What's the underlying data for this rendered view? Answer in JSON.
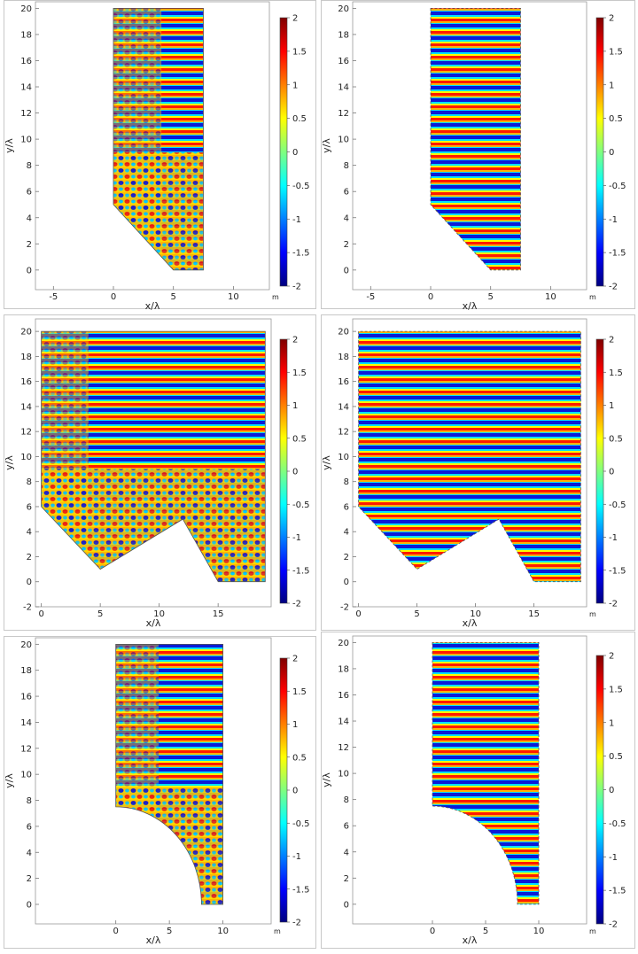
{
  "figure": {
    "colormap": [
      "#00007f",
      "#0000ff",
      "#007fff",
      "#00ffff",
      "#7fff7f",
      "#ffff00",
      "#ff7f00",
      "#ff0000",
      "#7f0000"
    ],
    "panel_border_color": "#c8c8c8"
  },
  "chart_data": [
    {
      "type": "heatmap",
      "xlabel": "x/λ",
      "ylabel": "y/λ",
      "unit": "m",
      "xlim": [
        -6.5,
        13
      ],
      "ylim": [
        -1.5,
        20.5
      ],
      "xticks": [
        -5,
        0,
        5,
        10
      ],
      "yticks": [
        0,
        2,
        4,
        6,
        8,
        10,
        12,
        14,
        16,
        18,
        20
      ],
      "domain": [
        [
          0,
          20
        ],
        [
          0,
          5
        ],
        [
          5,
          0
        ],
        [
          7.5,
          0
        ],
        [
          7.5,
          20
        ]
      ],
      "boundary": "plain",
      "field": "incident + reflected interference",
      "colorbar": {
        "range": [
          -2,
          2
        ],
        "ticks": [
          "2",
          "1.5",
          "1",
          "0.5",
          "0",
          "-0.5",
          "-1",
          "-1.5",
          "-2"
        ]
      }
    },
    {
      "type": "heatmap",
      "xlabel": "x/λ",
      "ylabel": "y/λ",
      "unit": "m",
      "xlim": [
        -6.5,
        13
      ],
      "ylim": [
        -1.5,
        20.5
      ],
      "xticks": [
        -5,
        0,
        5,
        10
      ],
      "yticks": [
        0,
        2,
        4,
        6,
        8,
        10,
        12,
        14,
        16,
        18,
        20
      ],
      "domain": [
        [
          0,
          20
        ],
        [
          0,
          5
        ],
        [
          5,
          0
        ],
        [
          7.5,
          0
        ],
        [
          7.5,
          20
        ]
      ],
      "boundary": "serrated",
      "field": "standing wave bands",
      "colorbar": {
        "range": [
          -2,
          2
        ],
        "ticks": [
          "2",
          "1.5",
          "1",
          "0.5",
          "0",
          "-0.5",
          "-1",
          "-1.5",
          "-2"
        ]
      }
    },
    {
      "type": "heatmap",
      "xlabel": "x/λ",
      "ylabel": "y/λ",
      "unit": "",
      "xlim": [
        -0.5,
        19.5
      ],
      "ylim": [
        -2,
        21
      ],
      "xticks": [
        0,
        5,
        10,
        15
      ],
      "yticks": [
        -2,
        0,
        2,
        4,
        6,
        8,
        10,
        12,
        14,
        16,
        18,
        20
      ],
      "domain": [
        [
          0,
          20
        ],
        [
          0,
          6
        ],
        [
          5,
          1
        ],
        [
          12,
          5
        ],
        [
          15,
          0
        ],
        [
          19,
          0
        ],
        [
          19,
          20
        ]
      ],
      "boundary": "plain",
      "field": "incident + reflected interference",
      "colorbar": {
        "range": [
          -2,
          2
        ],
        "ticks": [
          "2",
          "1.5",
          "1",
          "0.5",
          "0",
          "-0.5",
          "-1",
          "-1.5",
          "-2"
        ]
      }
    },
    {
      "type": "heatmap",
      "xlabel": "x/λ",
      "ylabel": "y/λ",
      "unit": "m",
      "xlim": [
        -0.5,
        19.5
      ],
      "ylim": [
        -2,
        21
      ],
      "xticks": [
        0,
        5,
        10,
        15
      ],
      "yticks": [
        -2,
        0,
        2,
        4,
        6,
        8,
        10,
        12,
        14,
        16,
        18,
        20
      ],
      "domain": [
        [
          0,
          20
        ],
        [
          0,
          6
        ],
        [
          5,
          1
        ],
        [
          12,
          5
        ],
        [
          15,
          0
        ],
        [
          19,
          0
        ],
        [
          19,
          20
        ]
      ],
      "boundary": "serrated",
      "field": "standing wave bands",
      "colorbar": {
        "range": [
          -2,
          2
        ],
        "ticks": [
          "2",
          "1.5",
          "1",
          "0.5",
          "0",
          "-0.5",
          "-1",
          "-1.5",
          "-2"
        ]
      }
    },
    {
      "type": "heatmap",
      "xlabel": "x/λ",
      "ylabel": "y/λ",
      "unit": "m",
      "xlim": [
        -7.5,
        14.5
      ],
      "ylim": [
        -1.5,
        20.5
      ],
      "xticks": [
        0,
        5,
        10
      ],
      "yticks": [
        0,
        2,
        4,
        6,
        8,
        10,
        12,
        14,
        16,
        18,
        20
      ],
      "domain_arc": {
        "top_left": [
          0,
          20
        ],
        "arc_start": [
          0,
          7.5
        ],
        "arc_end": [
          8,
          0
        ],
        "center": [
          0,
          0
        ],
        "right": 10
      },
      "boundary": "plain",
      "field": "incident + reflected interference",
      "colorbar": {
        "range": [
          -2,
          2
        ],
        "ticks": [
          "2",
          "1.5",
          "1",
          "0.5",
          "0",
          "-0.5",
          "-1",
          "-1.5",
          "-2"
        ]
      }
    },
    {
      "type": "heatmap",
      "xlabel": "x/λ",
      "ylabel": "y/λ",
      "unit": "m",
      "xlim": [
        -7.5,
        14.5
      ],
      "ylim": [
        -1.5,
        20.5
      ],
      "xticks": [
        0,
        5,
        10
      ],
      "yticks": [
        0,
        2,
        4,
        6,
        8,
        10,
        12,
        14,
        16,
        18,
        20
      ],
      "domain_arc": {
        "top_left": [
          0,
          20
        ],
        "arc_start": [
          0,
          7.5
        ],
        "arc_end": [
          8,
          0
        ],
        "center": [
          0,
          0
        ],
        "right": 10
      },
      "boundary": "serrated",
      "field": "standing wave bands",
      "colorbar": {
        "range": [
          -2,
          2
        ],
        "ticks": [
          "2",
          "1.5",
          "1",
          "0.5",
          "0",
          "-0.5",
          "-1",
          "-1.5",
          "-2"
        ]
      }
    }
  ]
}
